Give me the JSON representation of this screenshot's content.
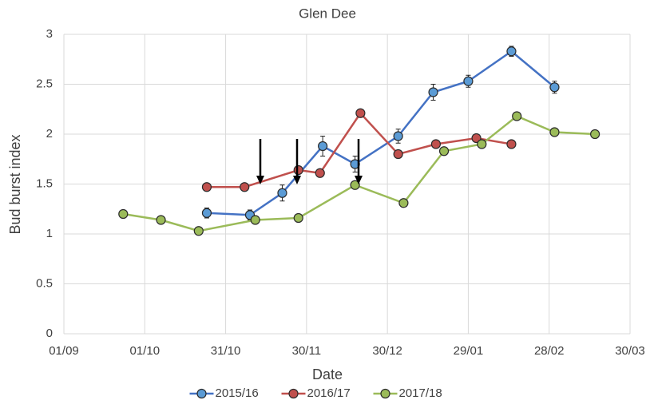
{
  "chart_data": {
    "type": "line",
    "title": "Glen Dee",
    "x_label": "Date",
    "y_label": "Bud burst index",
    "xlim": [
      0,
      210
    ],
    "xticks": [
      {
        "value": 0,
        "label": "01/09"
      },
      {
        "value": 30,
        "label": "01/10"
      },
      {
        "value": 60,
        "label": "31/10"
      },
      {
        "value": 90,
        "label": "30/11"
      },
      {
        "value": 120,
        "label": "30/12"
      },
      {
        "value": 150,
        "label": "29/01"
      },
      {
        "value": 180,
        "label": "28/02"
      },
      {
        "value": 210,
        "label": "30/03"
      }
    ],
    "ylim": [
      0,
      3
    ],
    "yticks": [
      0,
      0.5,
      1,
      1.5,
      2,
      2.5,
      3
    ],
    "grid": true,
    "legend": "bottom",
    "series": [
      {
        "name": "2015/16",
        "color": "#4472c4",
        "marker_color": "#5b9bd5",
        "x": [
          53,
          69,
          81,
          96,
          108,
          124,
          137,
          150,
          166,
          182
        ],
        "values": [
          1.21,
          1.19,
          1.41,
          1.88,
          1.7,
          1.98,
          2.42,
          2.53,
          2.83,
          2.47
        ],
        "errors": [
          0.05,
          0.05,
          0.08,
          0.1,
          0.08,
          0.07,
          0.08,
          0.06,
          0.05,
          0.06
        ]
      },
      {
        "name": "2016/17",
        "color": "#c0504d",
        "marker_color": "#c0504d",
        "x": [
          53,
          67,
          87,
          95,
          110,
          124,
          138,
          153,
          166
        ],
        "values": [
          1.47,
          1.47,
          1.64,
          1.61,
          2.21,
          1.8,
          1.9,
          1.96,
          1.9
        ]
      },
      {
        "name": "2017/18",
        "color": "#9bbb59",
        "marker_color": "#9bbb59",
        "x": [
          22,
          36,
          50,
          71,
          87,
          108,
          126,
          141,
          155,
          168,
          182,
          197
        ],
        "values": [
          1.2,
          1.14,
          1.03,
          1.14,
          1.16,
          1.49,
          1.31,
          1.83,
          1.9,
          2.18,
          2.02,
          2.0
        ]
      }
    ]
  }
}
